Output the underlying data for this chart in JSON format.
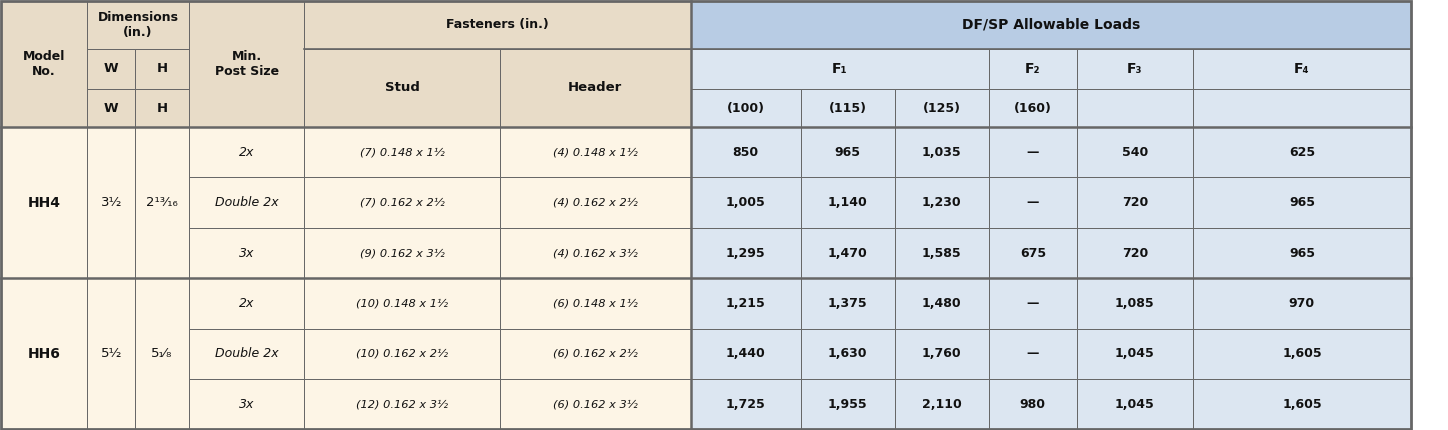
{
  "bg_color": "#fdf5e6",
  "cream_header": "#e8dcc8",
  "blue_mid": "#b8cce4",
  "blue_light": "#dce6f1",
  "white": "#ffffff",
  "border_color": "#666666",
  "text_color": "#111111",
  "figsize": [
    14.48,
    4.3
  ],
  "dpi": 100,
  "rows": [
    [
      "HH4",
      "3½",
      "2¹³⁄₁₆",
      "2x",
      "(7) 0.148 x 1½",
      "(4) 0.148 x 1½",
      "850",
      "965",
      "1,035",
      "—",
      "540",
      "625"
    ],
    [
      "HH4",
      "3½",
      "2¹³⁄₁₆",
      "Double 2x",
      "(7) 0.162 x 2½",
      "(4) 0.162 x 2½",
      "1,005",
      "1,140",
      "1,230",
      "—",
      "720",
      "965"
    ],
    [
      "HH4",
      "3½",
      "2¹³⁄₁₆",
      "3x",
      "(9) 0.162 x 3½",
      "(4) 0.162 x 3½",
      "1,295",
      "1,470",
      "1,585",
      "675",
      "720",
      "965"
    ],
    [
      "HH6",
      "5½",
      "5₁⁄₈",
      "2x",
      "(10) 0.148 x 1½",
      "(6) 0.148 x 1½",
      "1,215",
      "1,375",
      "1,480",
      "—",
      "1,085",
      "970"
    ],
    [
      "HH6",
      "5½",
      "5₁⁄₈",
      "Double 2x",
      "(10) 0.162 x 2½",
      "(6) 0.162 x 2½",
      "1,440",
      "1,630",
      "1,760",
      "—",
      "1,045",
      "1,605"
    ],
    [
      "HH6",
      "5½",
      "5₁⁄₈",
      "3x",
      "(12) 0.162 x 3½",
      "(6) 0.162 x 3½",
      "1,725",
      "1,955",
      "2,110",
      "980",
      "1,045",
      "1,605"
    ]
  ]
}
